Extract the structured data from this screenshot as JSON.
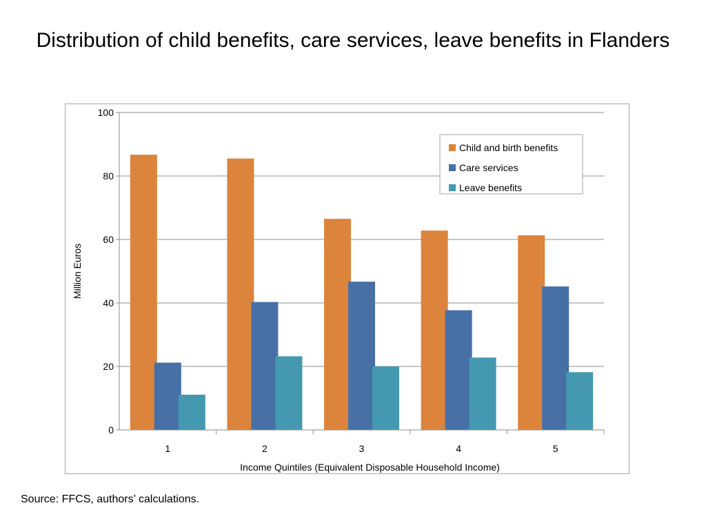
{
  "slide": {
    "title": "Distribution of child benefits, care services, leave benefits in Flanders",
    "source": "Source: FFCS, authors’ calculations."
  },
  "chart_data": {
    "type": "bar",
    "categories": [
      "1",
      "2",
      "3",
      "4",
      "5"
    ],
    "series": [
      {
        "name": "Child and birth benefits",
        "color": "#dd843c",
        "values": [
          86.7,
          85.5,
          66.5,
          62.8,
          61.3
        ]
      },
      {
        "name": "Care services",
        "color": "#4670a6",
        "values": [
          21.2,
          40.3,
          46.7,
          37.7,
          45.2
        ]
      },
      {
        "name": "Leave benefits",
        "color": "#4499b0",
        "values": [
          11.1,
          23.2,
          20.0,
          22.8,
          18.2
        ]
      }
    ],
    "xlabel": "Income Quintiles (Equivalent Disposable Household Income)",
    "ylabel": "Million Euros",
    "ylim": [
      0,
      100
    ],
    "yticks": [
      0,
      20,
      40,
      60,
      80,
      100
    ],
    "grid": true,
    "legend_position": "top-right"
  }
}
